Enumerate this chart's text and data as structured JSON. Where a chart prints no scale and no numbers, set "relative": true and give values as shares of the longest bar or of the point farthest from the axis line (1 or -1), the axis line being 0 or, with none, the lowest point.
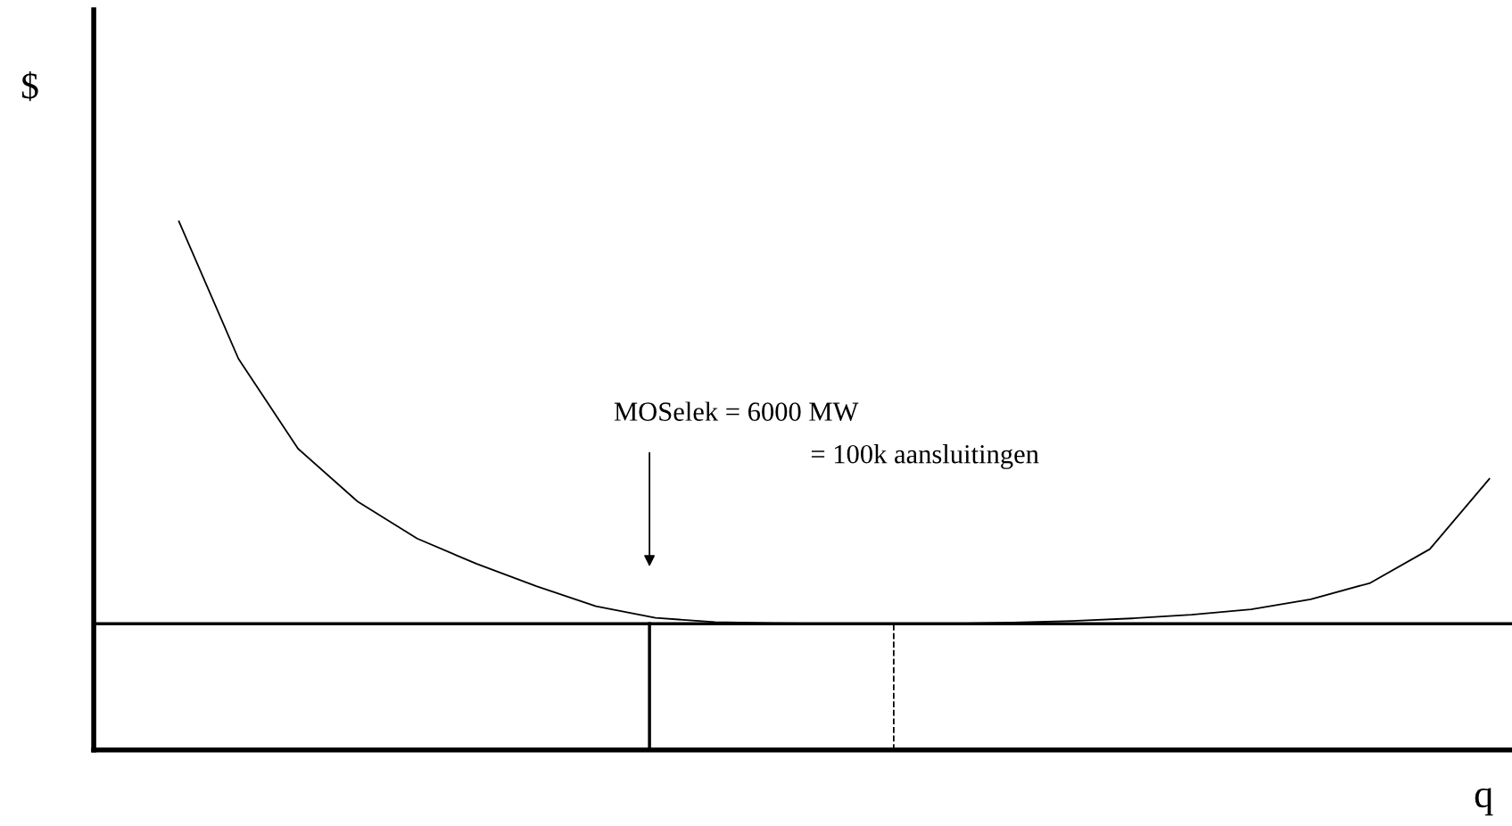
{
  "chart_data": {
    "type": "line",
    "relative": true,
    "xlabel": "q",
    "ylabel": "$",
    "categories": [
      null,
      null,
      null,
      null,
      null,
      null,
      null,
      null,
      null,
      null,
      null,
      null,
      null,
      null,
      null,
      null,
      null,
      null,
      null,
      null,
      null,
      null,
      null
    ],
    "series": [
      {
        "color": "#000000",
        "values": [
          1.0,
          0.74,
          0.57,
          0.47,
          0.4,
          0.352,
          0.31,
          0.272,
          0.25,
          0.242,
          0.24,
          0.239,
          0.239,
          0.239,
          0.241,
          0.244,
          0.249,
          0.256,
          0.266,
          0.285,
          0.316,
          0.38,
          0.513
        ]
      }
    ],
    "ref_lines": [
      {
        "axis": "y",
        "value": 0.239,
        "color": "#000000",
        "line_style": "solid"
      }
    ],
    "annotations": [
      "MOSelek = 6000 MW",
      "= 100k aansluitingen"
    ]
  }
}
